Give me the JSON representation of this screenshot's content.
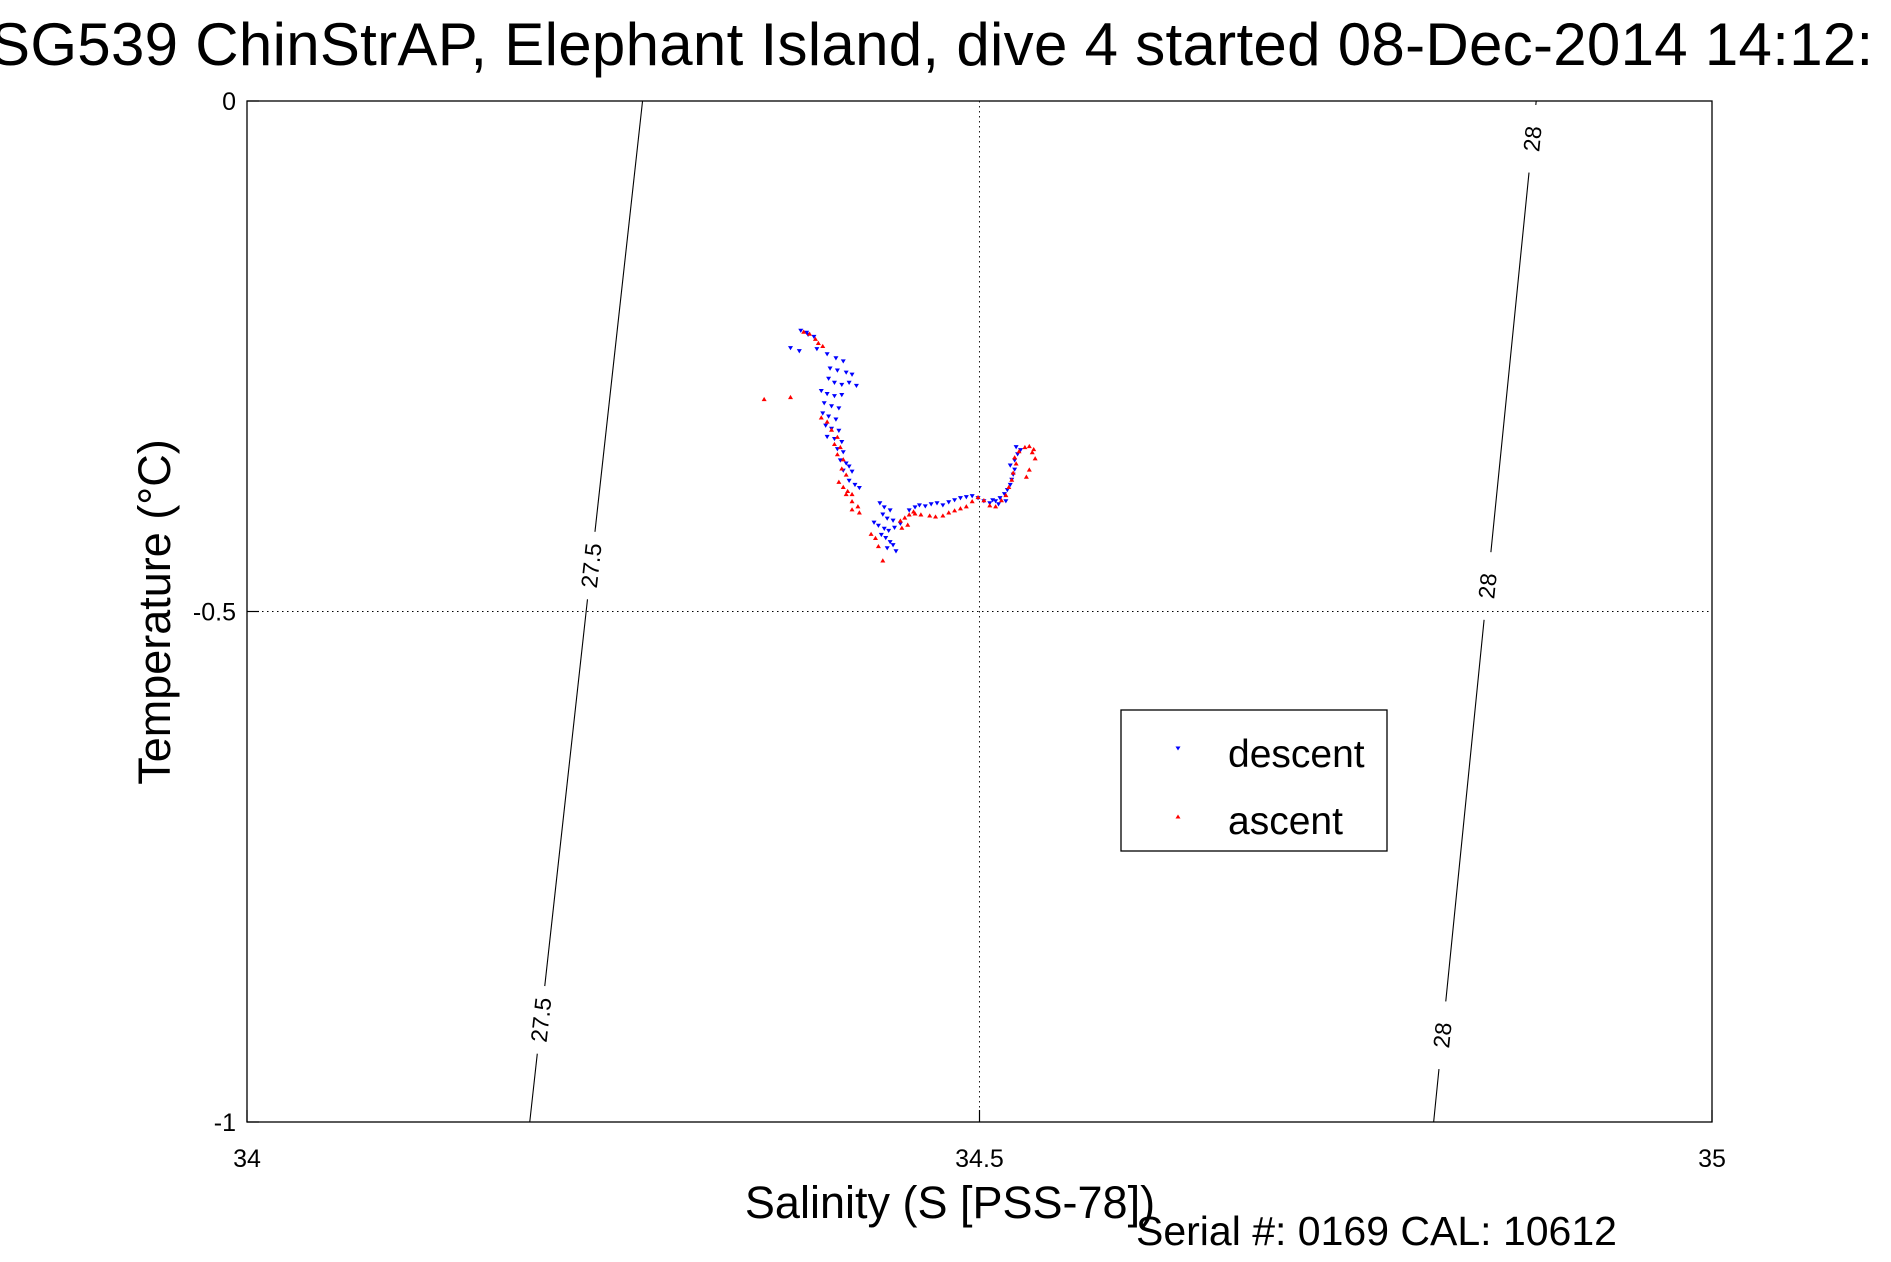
{
  "title": "SG539 ChinStrAP, Elephant Island, dive 4 started 08-Dec-2014 14:12:",
  "footer": "Serial #: 0169 CAL: 10612",
  "chart_data": {
    "type": "scatter",
    "title": "SG539 ChinStrAP, Elephant Island, dive 4 started 08-Dec-2014 14:12:",
    "xlabel": "Salinity (S [PSS-78])",
    "ylabel": "Temperature (°C)",
    "xlim": [
      34,
      35
    ],
    "ylim": [
      -1,
      0
    ],
    "xticks": [
      34,
      34.5,
      35
    ],
    "yticks": [
      -1,
      -0.5,
      0
    ],
    "xtick_labels": [
      "34",
      "34.5",
      "35"
    ],
    "ytick_labels": [
      "-1",
      "-0.5",
      "0"
    ],
    "grid": true,
    "legend": {
      "position": "inside-lower-right",
      "entries": [
        "descent",
        "ascent"
      ]
    },
    "isopycnals": [
      {
        "label": "27.5",
        "points": [
          [
            34.27,
            0.0
          ],
          [
            34.193,
            -1.0
          ]
        ],
        "label_positions": [
          [
            34.225,
            -0.455
          ],
          [
            34.2,
            -0.9
          ]
        ]
      },
      {
        "label": "28",
        "points": [
          [
            34.88,
            0.0
          ],
          [
            34.81,
            -1.0
          ]
        ],
        "label_positions": [
          [
            34.87,
            -0.037
          ],
          [
            34.845,
            -0.475
          ],
          [
            34.82,
            -0.915
          ]
        ]
      }
    ],
    "series": [
      {
        "name": "descent",
        "color": "#0000ff",
        "marker": "triangle-down",
        "points": [
          [
            34.382,
            -0.227
          ],
          [
            34.378,
            -0.225
          ],
          [
            34.383,
            -0.229
          ],
          [
            34.387,
            -0.231
          ],
          [
            34.371,
            -0.242
          ],
          [
            34.377,
            -0.245
          ],
          [
            34.389,
            -0.243
          ],
          [
            34.396,
            -0.248
          ],
          [
            34.402,
            -0.252
          ],
          [
            34.407,
            -0.255
          ],
          [
            34.398,
            -0.262
          ],
          [
            34.403,
            -0.264
          ],
          [
            34.409,
            -0.266
          ],
          [
            34.413,
            -0.268
          ],
          [
            34.397,
            -0.272
          ],
          [
            34.401,
            -0.276
          ],
          [
            34.406,
            -0.278
          ],
          [
            34.411,
            -0.276
          ],
          [
            34.416,
            -0.279
          ],
          [
            34.392,
            -0.284
          ],
          [
            34.396,
            -0.287
          ],
          [
            34.401,
            -0.289
          ],
          [
            34.406,
            -0.288
          ],
          [
            34.394,
            -0.296
          ],
          [
            34.399,
            -0.299
          ],
          [
            34.404,
            -0.301
          ],
          [
            34.393,
            -0.306
          ],
          [
            34.397,
            -0.309
          ],
          [
            34.402,
            -0.312
          ],
          [
            34.395,
            -0.318
          ],
          [
            34.399,
            -0.321
          ],
          [
            34.404,
            -0.323
          ],
          [
            34.396,
            -0.329
          ],
          [
            34.401,
            -0.331
          ],
          [
            34.406,
            -0.334
          ],
          [
            34.403,
            -0.341
          ],
          [
            34.407,
            -0.344
          ],
          [
            34.405,
            -0.352
          ],
          [
            34.409,
            -0.355
          ],
          [
            34.407,
            -0.362
          ],
          [
            34.411,
            -0.358
          ],
          [
            34.413,
            -0.363
          ],
          [
            34.411,
            -0.372
          ],
          [
            34.415,
            -0.376
          ],
          [
            34.418,
            -0.379
          ],
          [
            34.432,
            -0.394
          ],
          [
            34.435,
            -0.398
          ],
          [
            34.439,
            -0.401
          ],
          [
            34.434,
            -0.405
          ],
          [
            34.437,
            -0.409
          ],
          [
            34.441,
            -0.411
          ],
          [
            34.428,
            -0.413
          ],
          [
            34.431,
            -0.416
          ],
          [
            34.435,
            -0.419
          ],
          [
            34.438,
            -0.421
          ],
          [
            34.442,
            -0.418
          ],
          [
            34.446,
            -0.414
          ],
          [
            34.433,
            -0.425
          ],
          [
            34.436,
            -0.428
          ],
          [
            34.439,
            -0.432
          ],
          [
            34.437,
            -0.438
          ],
          [
            34.441,
            -0.435
          ],
          [
            34.443,
            -0.441
          ],
          [
            34.452,
            -0.401
          ],
          [
            34.456,
            -0.398
          ],
          [
            34.459,
            -0.396
          ],
          [
            34.463,
            -0.397
          ],
          [
            34.467,
            -0.395
          ],
          [
            34.471,
            -0.394
          ],
          [
            34.475,
            -0.396
          ],
          [
            34.479,
            -0.393
          ],
          [
            34.483,
            -0.391
          ],
          [
            34.487,
            -0.389
          ],
          [
            34.491,
            -0.388
          ],
          [
            34.495,
            -0.387
          ],
          [
            34.499,
            -0.389
          ],
          [
            34.503,
            -0.392
          ],
          [
            34.507,
            -0.394
          ],
          [
            34.511,
            -0.392
          ],
          [
            34.514,
            -0.389
          ],
          [
            34.517,
            -0.385
          ],
          [
            34.519,
            -0.381
          ],
          [
            34.521,
            -0.376
          ],
          [
            34.522,
            -0.371
          ],
          [
            34.523,
            -0.366
          ],
          [
            34.524,
            -0.361
          ],
          [
            34.521,
            -0.357
          ],
          [
            34.524,
            -0.352
          ],
          [
            34.526,
            -0.346
          ],
          [
            34.528,
            -0.342
          ],
          [
            34.525,
            -0.339
          ],
          [
            34.518,
            -0.392
          ],
          [
            34.513,
            -0.395
          ],
          [
            34.509,
            -0.391
          ]
        ]
      },
      {
        "name": "ascent",
        "color": "#ff0000",
        "marker": "triangle-up",
        "points": [
          [
            34.38,
            -0.226
          ],
          [
            34.384,
            -0.228
          ],
          [
            34.388,
            -0.233
          ],
          [
            34.39,
            -0.237
          ],
          [
            34.393,
            -0.24
          ],
          [
            34.371,
            -0.29
          ],
          [
            34.353,
            -0.292
          ],
          [
            34.392,
            -0.31
          ],
          [
            34.396,
            -0.314
          ],
          [
            34.399,
            -0.322
          ],
          [
            34.403,
            -0.329
          ],
          [
            34.401,
            -0.336
          ],
          [
            34.405,
            -0.339
          ],
          [
            34.403,
            -0.346
          ],
          [
            34.407,
            -0.351
          ],
          [
            34.406,
            -0.36
          ],
          [
            34.409,
            -0.366
          ],
          [
            34.404,
            -0.373
          ],
          [
            34.407,
            -0.378
          ],
          [
            34.41,
            -0.382
          ],
          [
            34.413,
            -0.385
          ],
          [
            34.409,
            -0.385
          ],
          [
            34.413,
            -0.392
          ],
          [
            34.417,
            -0.397
          ],
          [
            34.413,
            -0.4
          ],
          [
            34.418,
            -0.403
          ],
          [
            34.426,
            -0.424
          ],
          [
            34.429,
            -0.428
          ],
          [
            34.431,
            -0.436
          ],
          [
            34.434,
            -0.45
          ],
          [
            34.446,
            -0.411
          ],
          [
            34.449,
            -0.408
          ],
          [
            34.452,
            -0.405
          ],
          [
            34.456,
            -0.404
          ],
          [
            34.46,
            -0.405
          ],
          [
            34.466,
            -0.406
          ],
          [
            34.47,
            -0.407
          ],
          [
            34.475,
            -0.406
          ],
          [
            34.479,
            -0.403
          ],
          [
            34.483,
            -0.401
          ],
          [
            34.487,
            -0.399
          ],
          [
            34.491,
            -0.397
          ],
          [
            34.495,
            -0.392
          ],
          [
            34.499,
            -0.388
          ],
          [
            34.503,
            -0.391
          ],
          [
            34.507,
            -0.396
          ],
          [
            34.511,
            -0.397
          ],
          [
            34.515,
            -0.391
          ],
          [
            34.518,
            -0.386
          ],
          [
            34.52,
            -0.378
          ],
          [
            34.522,
            -0.371
          ],
          [
            34.523,
            -0.364
          ],
          [
            34.525,
            -0.355
          ],
          [
            34.524,
            -0.349
          ],
          [
            34.527,
            -0.343
          ],
          [
            34.531,
            -0.339
          ],
          [
            34.534,
            -0.338
          ],
          [
            34.537,
            -0.341
          ],
          [
            34.538,
            -0.35
          ],
          [
            34.534,
            -0.361
          ],
          [
            34.532,
            -0.368
          ],
          [
            34.536,
            -0.344
          ],
          [
            34.451,
            -0.415
          ],
          [
            34.447,
            -0.418
          ],
          [
            34.455,
            -0.402
          ]
        ]
      }
    ]
  }
}
